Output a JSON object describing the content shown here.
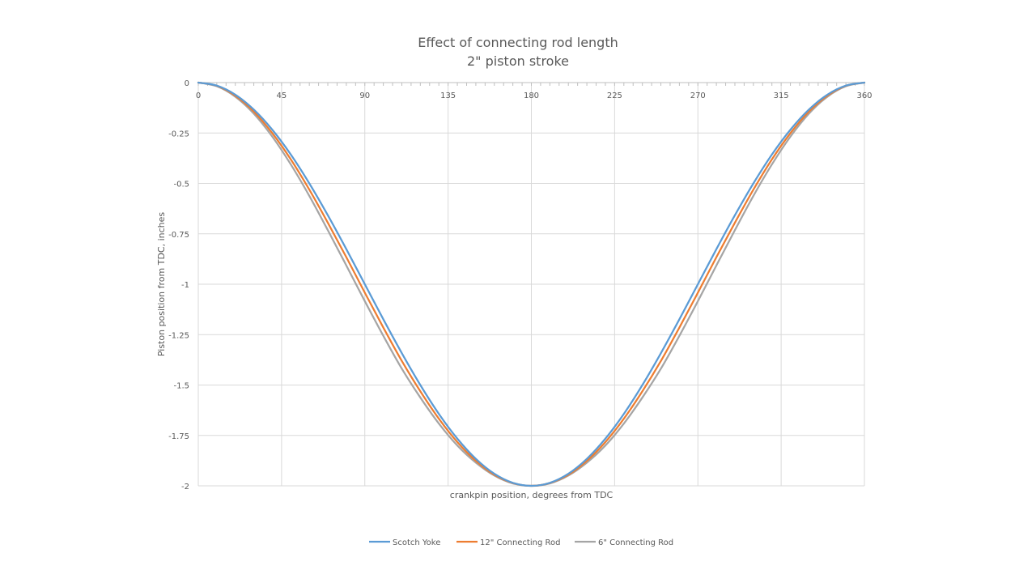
{
  "chart_data": {
    "type": "line",
    "title": "Effect of connecting rod length",
    "subtitle": "2\" piston stroke",
    "xlabel": "crankpin position, degrees from TDC",
    "ylabel": "Piston position from TDC, inches",
    "xlim": [
      0,
      360
    ],
    "ylim": [
      -2,
      0
    ],
    "x_ticks": [
      0,
      45,
      90,
      135,
      180,
      225,
      270,
      315,
      360
    ],
    "x_tick_labels": [
      "0",
      "45",
      "90",
      "135",
      "180",
      "225",
      "270",
      "315",
      "360"
    ],
    "y_ticks": [
      0,
      -0.25,
      -0.5,
      -0.75,
      -1,
      -1.25,
      -1.5,
      -1.75,
      -2
    ],
    "y_tick_labels": [
      "0",
      "-0.25",
      "-0.5",
      "-0.75",
      "-1",
      "-1.25",
      "-1.5",
      "-1.75",
      "-2"
    ],
    "grid": true,
    "legend_position": "bottom",
    "x": [
      0,
      10,
      20,
      30,
      40,
      50,
      60,
      70,
      80,
      90,
      100,
      110,
      120,
      130,
      140,
      150,
      160,
      170,
      180,
      190,
      200,
      210,
      220,
      230,
      240,
      250,
      260,
      270,
      280,
      290,
      300,
      310,
      320,
      330,
      340,
      350,
      360
    ],
    "series": [
      {
        "name": "Scotch Yoke",
        "color": "#5b9bd5",
        "values": [
          0,
          -0.015,
          -0.06,
          -0.134,
          -0.234,
          -0.357,
          -0.5,
          -0.658,
          -0.826,
          -1,
          -1.174,
          -1.342,
          -1.5,
          -1.643,
          -1.766,
          -1.866,
          -1.94,
          -1.985,
          -2,
          -1.985,
          -1.94,
          -1.866,
          -1.766,
          -1.643,
          -1.5,
          -1.342,
          -1.174,
          -1,
          -0.826,
          -0.658,
          -0.5,
          -0.357,
          -0.234,
          -0.134,
          -0.06,
          -0.015,
          0
        ]
      },
      {
        "name": "12\" Connecting Rod",
        "color": "#ed7d31",
        "values": [
          0,
          -0.016,
          -0.065,
          -0.144,
          -0.251,
          -0.381,
          -0.531,
          -0.695,
          -0.866,
          -1.042,
          -1.215,
          -1.381,
          -1.531,
          -1.667,
          -1.783,
          -1.876,
          -1.945,
          -1.986,
          -2,
          -1.986,
          -1.945,
          -1.876,
          -1.783,
          -1.667,
          -1.531,
          -1.381,
          -1.215,
          -1.042,
          -0.866,
          -0.695,
          -0.531,
          -0.381,
          -0.251,
          -0.144,
          -0.065,
          -0.016,
          0
        ]
      },
      {
        "name": "6\" Connecting Rod",
        "color": "#a5a5a5",
        "values": [
          0,
          -0.018,
          -0.07,
          -0.154,
          -0.268,
          -0.406,
          -0.562,
          -0.732,
          -0.907,
          -1.084,
          -1.256,
          -1.419,
          -1.562,
          -1.691,
          -1.8,
          -1.885,
          -1.949,
          -1.988,
          -2,
          -1.988,
          -1.949,
          -1.885,
          -1.8,
          -1.691,
          -1.562,
          -1.419,
          -1.256,
          -1.084,
          -0.907,
          -0.732,
          -0.562,
          -0.406,
          -0.268,
          -0.154,
          -0.07,
          -0.018,
          0
        ]
      }
    ]
  }
}
